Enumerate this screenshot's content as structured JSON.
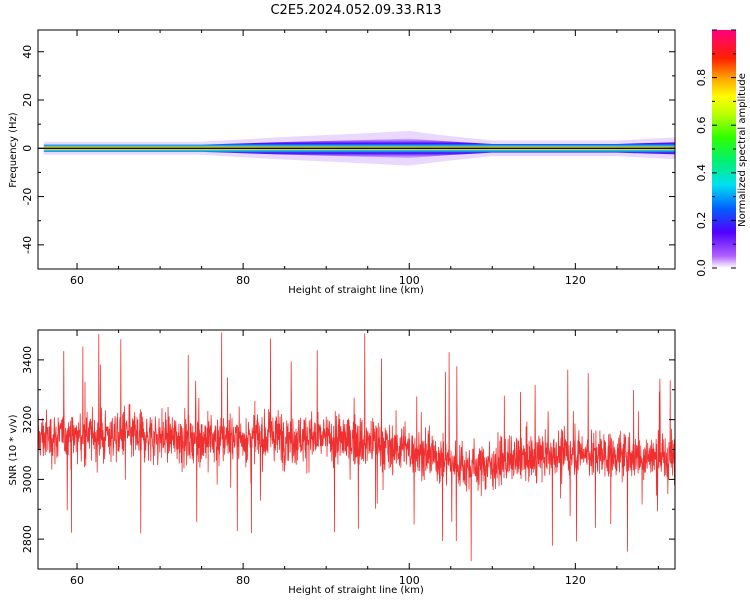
{
  "title": "C2E5.2024.052.09.33.R13",
  "chart_data": [
    {
      "type": "heatmap",
      "xlabel": "Height of straight line (km)",
      "ylabel": "Frequency (Hz)",
      "xlim": [
        55.3,
        132
      ],
      "ylim": [
        -50,
        49
      ],
      "x_ticks": [
        "60",
        "80",
        "100",
        "120"
      ],
      "y_ticks": [
        "40",
        "20",
        "0",
        "-20",
        "-40"
      ],
      "colorbar": {
        "label": "Normalized spectral amplitude",
        "range": [
          0,
          1
        ],
        "ticks": [
          "0.0",
          "0.2",
          "0.4",
          "0.6",
          "0.8"
        ]
      },
      "band": {
        "center_frequency": 0,
        "profile": [
          {
            "x": 56,
            "halfwidth": 1.5
          },
          {
            "x": 75,
            "halfwidth": 1.5
          },
          {
            "x": 84,
            "halfwidth": 2.5
          },
          {
            "x": 95,
            "halfwidth": 3.5
          },
          {
            "x": 100,
            "halfwidth": 4.0
          },
          {
            "x": 104,
            "halfwidth": 3.0
          },
          {
            "x": 110,
            "halfwidth": 1.8
          },
          {
            "x": 125,
            "halfwidth": 1.8
          },
          {
            "x": 132,
            "halfwidth": 2.5
          }
        ]
      }
    },
    {
      "type": "line",
      "xlabel": "Height of straight line (km)",
      "ylabel": "SNR (10 * v/v)",
      "xlim": [
        55.3,
        132
      ],
      "ylim": [
        2700,
        3500
      ],
      "x_ticks": [
        "60",
        "80",
        "100",
        "120"
      ],
      "y_ticks": [
        "3400",
        "3200",
        "3000",
        "2800"
      ],
      "color": "#f03030",
      "envelope": [
        {
          "x": 55.3,
          "mean": 3140,
          "spread": 110
        },
        {
          "x": 65,
          "mean": 3150,
          "spread": 110
        },
        {
          "x": 75,
          "mean": 3135,
          "spread": 115
        },
        {
          "x": 85,
          "mean": 3145,
          "spread": 115
        },
        {
          "x": 95,
          "mean": 3125,
          "spread": 110
        },
        {
          "x": 100,
          "mean": 3100,
          "spread": 110
        },
        {
          "x": 107,
          "mean": 3040,
          "spread": 105
        },
        {
          "x": 112,
          "mean": 3060,
          "spread": 100
        },
        {
          "x": 120,
          "mean": 3090,
          "spread": 100
        },
        {
          "x": 132,
          "mean": 3070,
          "spread": 105
        }
      ]
    }
  ]
}
